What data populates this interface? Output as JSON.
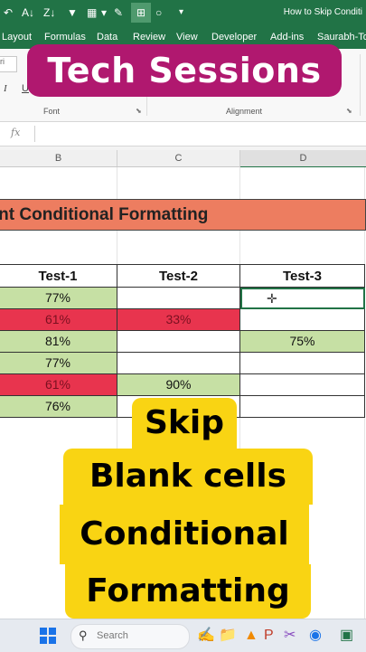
{
  "window": {
    "title": "How to Skip Conditi"
  },
  "quick_access": {
    "icons": [
      "undo-icon",
      "sort-icon",
      "sort-desc-icon",
      "filter-icon",
      "fill-color-icon",
      "format-painter-icon",
      "border-icon",
      "circle-icon",
      "more-icon"
    ]
  },
  "ribbon_tabs": [
    "Layout",
    "Formulas",
    "Data",
    "Review",
    "View",
    "Developer",
    "Add-ins",
    "Saurabh-Too"
  ],
  "ribbon": {
    "font_name_fragment": "ri",
    "italic_label": "I",
    "underline_label": "U",
    "font_group_label": "Font",
    "alignment_group_label": "Alignment"
  },
  "banner": {
    "text": "Tech Sessions",
    "color": "#b0186f"
  },
  "formula_bar": {
    "fx_label": "fx",
    "value": ""
  },
  "column_headers": [
    "B",
    "C",
    "D"
  ],
  "sheet": {
    "title": "Different Conditional Formatting",
    "table": {
      "headers": [
        "Test-1",
        "Test-2",
        "Test-3"
      ],
      "rows": [
        [
          "77%",
          "",
          ""
        ],
        [
          "61%",
          "33%",
          ""
        ],
        [
          "81%",
          "",
          "75%"
        ],
        [
          "77%",
          "",
          ""
        ],
        [
          "61%",
          "90%",
          ""
        ],
        [
          "76%",
          "",
          ""
        ]
      ],
      "fills": [
        [
          "green",
          "",
          ""
        ],
        [
          "red",
          "red",
          ""
        ],
        [
          "green",
          "",
          "green"
        ],
        [
          "green",
          "",
          ""
        ],
        [
          "red",
          "green",
          ""
        ],
        [
          "green",
          "",
          ""
        ]
      ]
    }
  },
  "overlay": {
    "lines": [
      "Skip",
      "Blank cells",
      "Conditional",
      "Formatting"
    ],
    "color": "#f9d413"
  },
  "taskbar": {
    "search_placeholder": "Search"
  },
  "colors": {
    "excel_green": "#217346",
    "pass_fill": "#c6e0a4",
    "fail_fill": "#e8344e"
  }
}
